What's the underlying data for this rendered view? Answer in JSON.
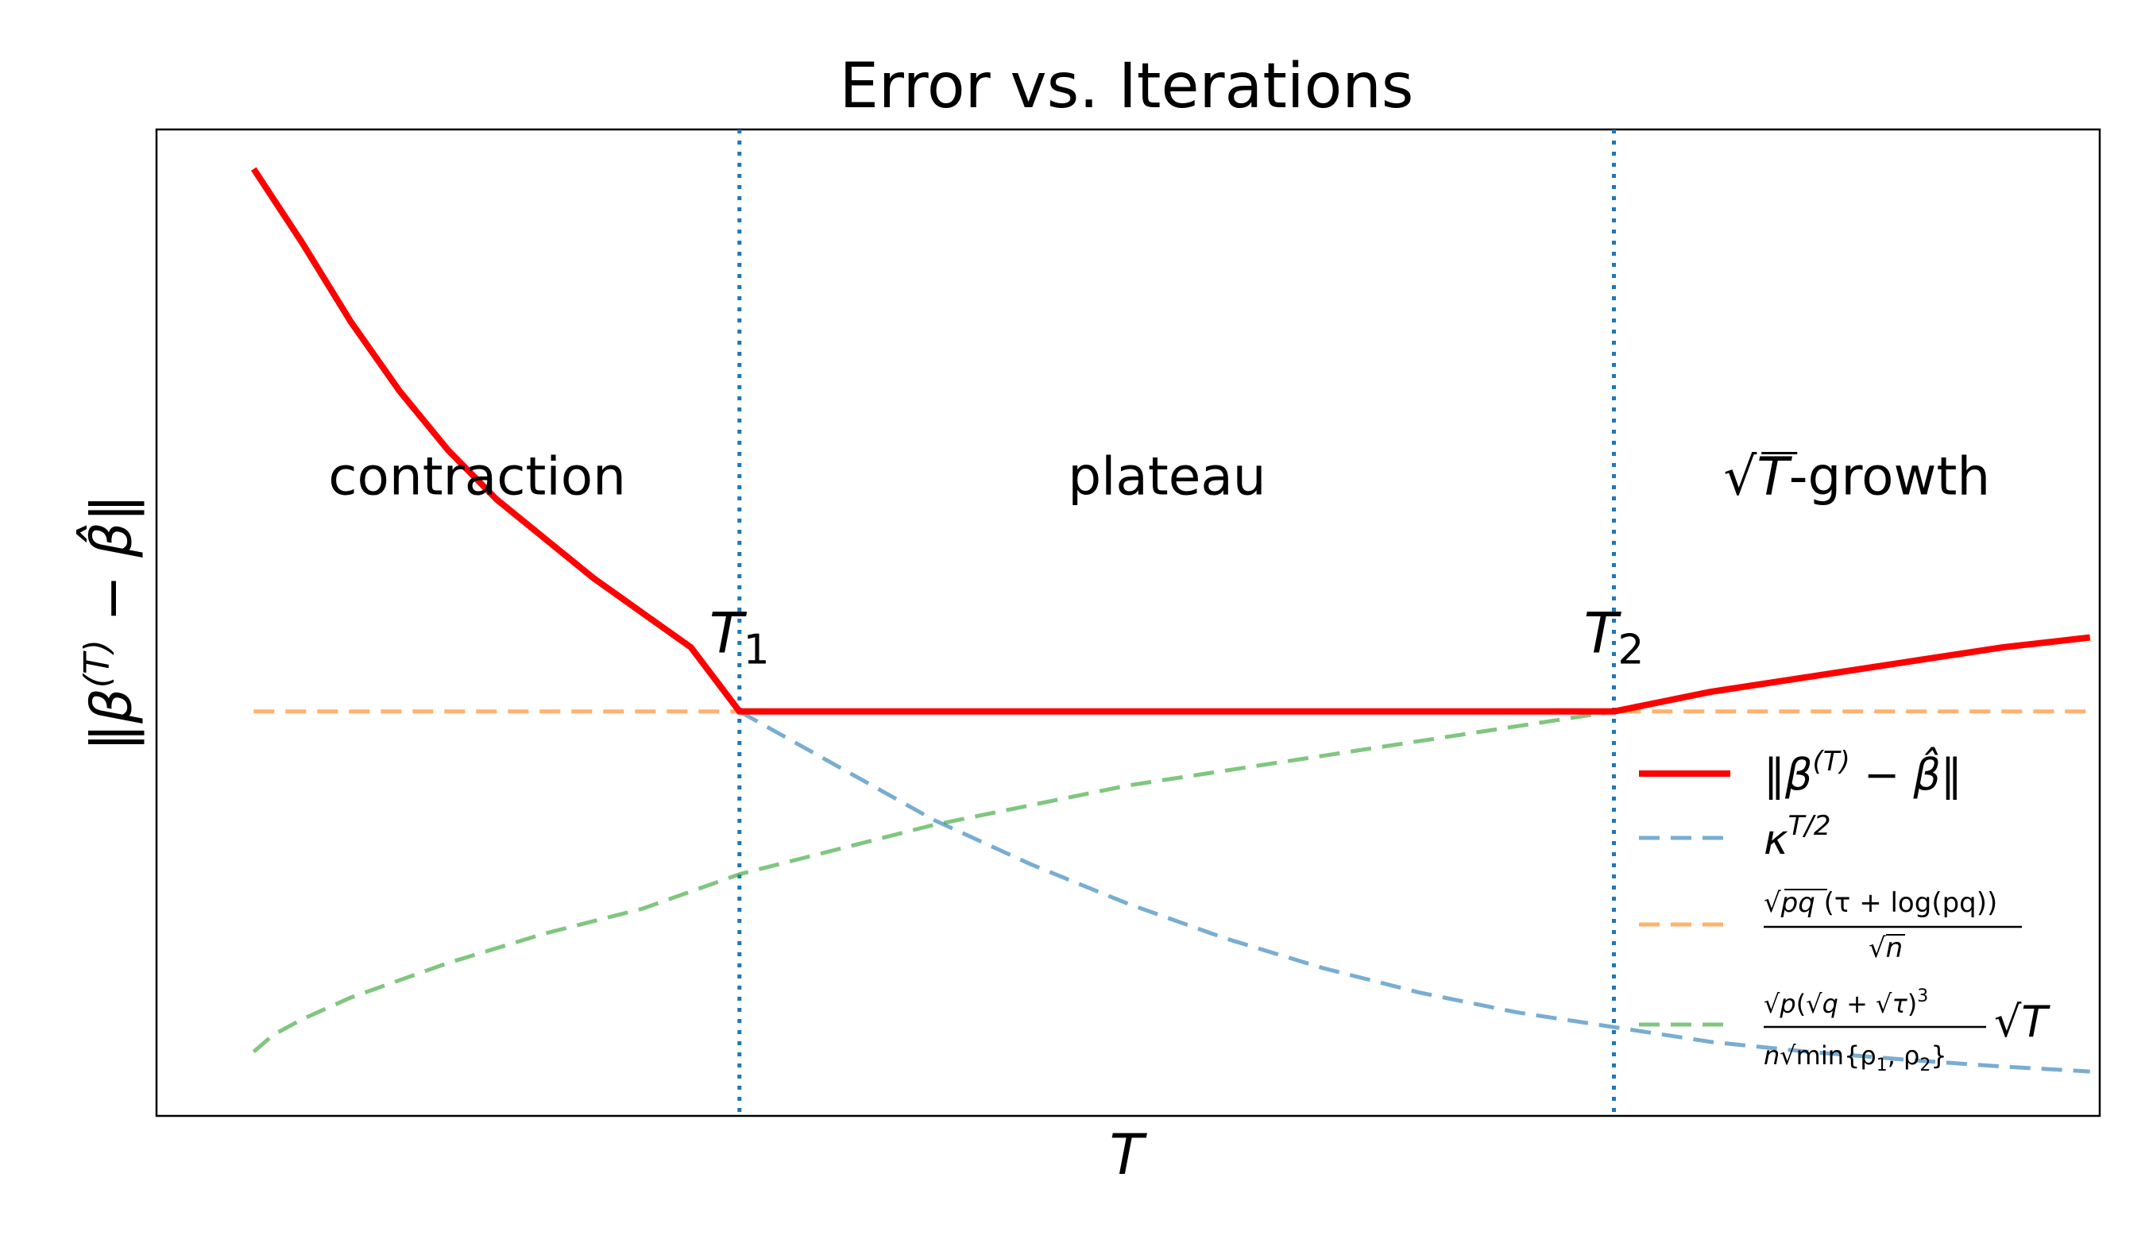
{
  "chart_data": {
    "type": "line",
    "title": "Error vs. Iterations",
    "xlabel": "T",
    "ylabel": "‖β^(T) − β̂‖",
    "ticks": "none",
    "grid": false,
    "legend_placement": "lower-right",
    "xlim": [
      0,
      10
    ],
    "ylim": [
      0,
      10
    ],
    "vlines": [
      {
        "x": 3,
        "style": "dotted",
        "color": "#1f77b4"
      },
      {
        "x": 7.5,
        "style": "dotted",
        "color": "#1f77b4"
      }
    ],
    "annotations": [
      {
        "text": "contraction",
        "x": 1.65,
        "y": 6.3
      },
      {
        "text": "plateau",
        "x": 5.2,
        "y": 6.3
      },
      {
        "text_parts": [
          "√",
          "T",
          "-growth"
        ],
        "x": 8.75,
        "y": 6.3
      },
      {
        "base": "T",
        "sub": "1",
        "x": 3.0,
        "y": 4.7
      },
      {
        "base": "T",
        "sub": "2",
        "x": 7.5,
        "y": 4.7
      }
    ],
    "series": [
      {
        "name": "‖β^(T) − β̂‖",
        "color": "#ff0000",
        "style": "solid",
        "x": [
          0.5,
          0.75,
          1.0,
          1.25,
          1.5,
          1.75,
          2.0,
          2.25,
          2.5,
          2.75,
          3.0,
          3.5,
          4.0,
          4.5,
          5.0,
          5.5,
          6.0,
          6.5,
          7.0,
          7.5,
          8.0,
          8.5,
          9.0,
          9.5,
          9.95
        ],
        "values": [
          9.6,
          8.85,
          8.05,
          7.35,
          6.75,
          6.25,
          5.85,
          5.45,
          5.1,
          4.75,
          4.1,
          4.1,
          4.1,
          4.1,
          4.1,
          4.1,
          4.1,
          4.1,
          4.1,
          4.1,
          4.3,
          4.45,
          4.6,
          4.75,
          4.85
        ]
      },
      {
        "name": "κ^{T/2}",
        "color": "#1f77b4",
        "style": "dashed",
        "x": [
          3.0,
          3.5,
          4.0,
          4.5,
          5.0,
          5.5,
          6.0,
          6.5,
          7.0,
          7.5,
          8.0,
          8.5,
          9.0,
          9.5,
          9.95
        ],
        "values": [
          4.1,
          3.55,
          3.0,
          2.55,
          2.15,
          1.8,
          1.5,
          1.25,
          1.05,
          0.9,
          0.75,
          0.65,
          0.57,
          0.5,
          0.45
        ]
      },
      {
        "name": "√(pq)(τ + log(pq)) / √n",
        "color": "#ff7f0e",
        "style": "dashed",
        "x": [
          0.5,
          9.95
        ],
        "values": [
          4.1,
          4.1
        ]
      },
      {
        "name": "√p(√q + √τ)^3 / (n√min{ρ1, ρ2}) · √T",
        "color": "#2ca02c",
        "style": "dashed",
        "x": [
          0.5,
          0.6,
          0.75,
          1.0,
          1.5,
          2.0,
          2.5,
          3.0,
          3.5,
          4.0,
          4.5,
          5.0,
          5.5,
          6.0,
          6.5,
          7.0,
          7.5
        ],
        "values": [
          0.65,
          0.82,
          0.98,
          1.2,
          1.55,
          1.85,
          2.1,
          2.45,
          2.7,
          2.95,
          3.15,
          3.35,
          3.5,
          3.65,
          3.8,
          3.95,
          4.1
        ]
      }
    ]
  },
  "legend": {
    "entry1": {
      "norm_open": "‖β",
      "sup": "(T)",
      "minus": " − ",
      "beta_hat": "β̂",
      "norm_close": "‖"
    },
    "entry2": {
      "base": "κ",
      "sup": "T/2"
    },
    "entry3": {
      "num_sqrt": "pq",
      "num_rest": " (τ + log(pq))",
      "den_sqrt": "n"
    },
    "entry4": {
      "num_sqrt_p": "p",
      "num_open": "(",
      "num_sqrt_q": "q",
      "num_plus": " + ",
      "num_sqrt_tau": "τ",
      "num_close": ")",
      "num_pow": "3",
      "den_n": "n",
      "den_sqrt": "min{ρ",
      "den_sub1": "1",
      "den_mid": ", ρ",
      "den_sub2": "2",
      "den_close": "}",
      "tail_sqrt": "T"
    }
  },
  "axes_text": {
    "ylabel_open": "‖β",
    "ylabel_sup": "(T)",
    "ylabel_mid": " − ",
    "ylabel_hat": "β̂",
    "ylabel_close": "‖",
    "sqrt_sign": "√"
  }
}
